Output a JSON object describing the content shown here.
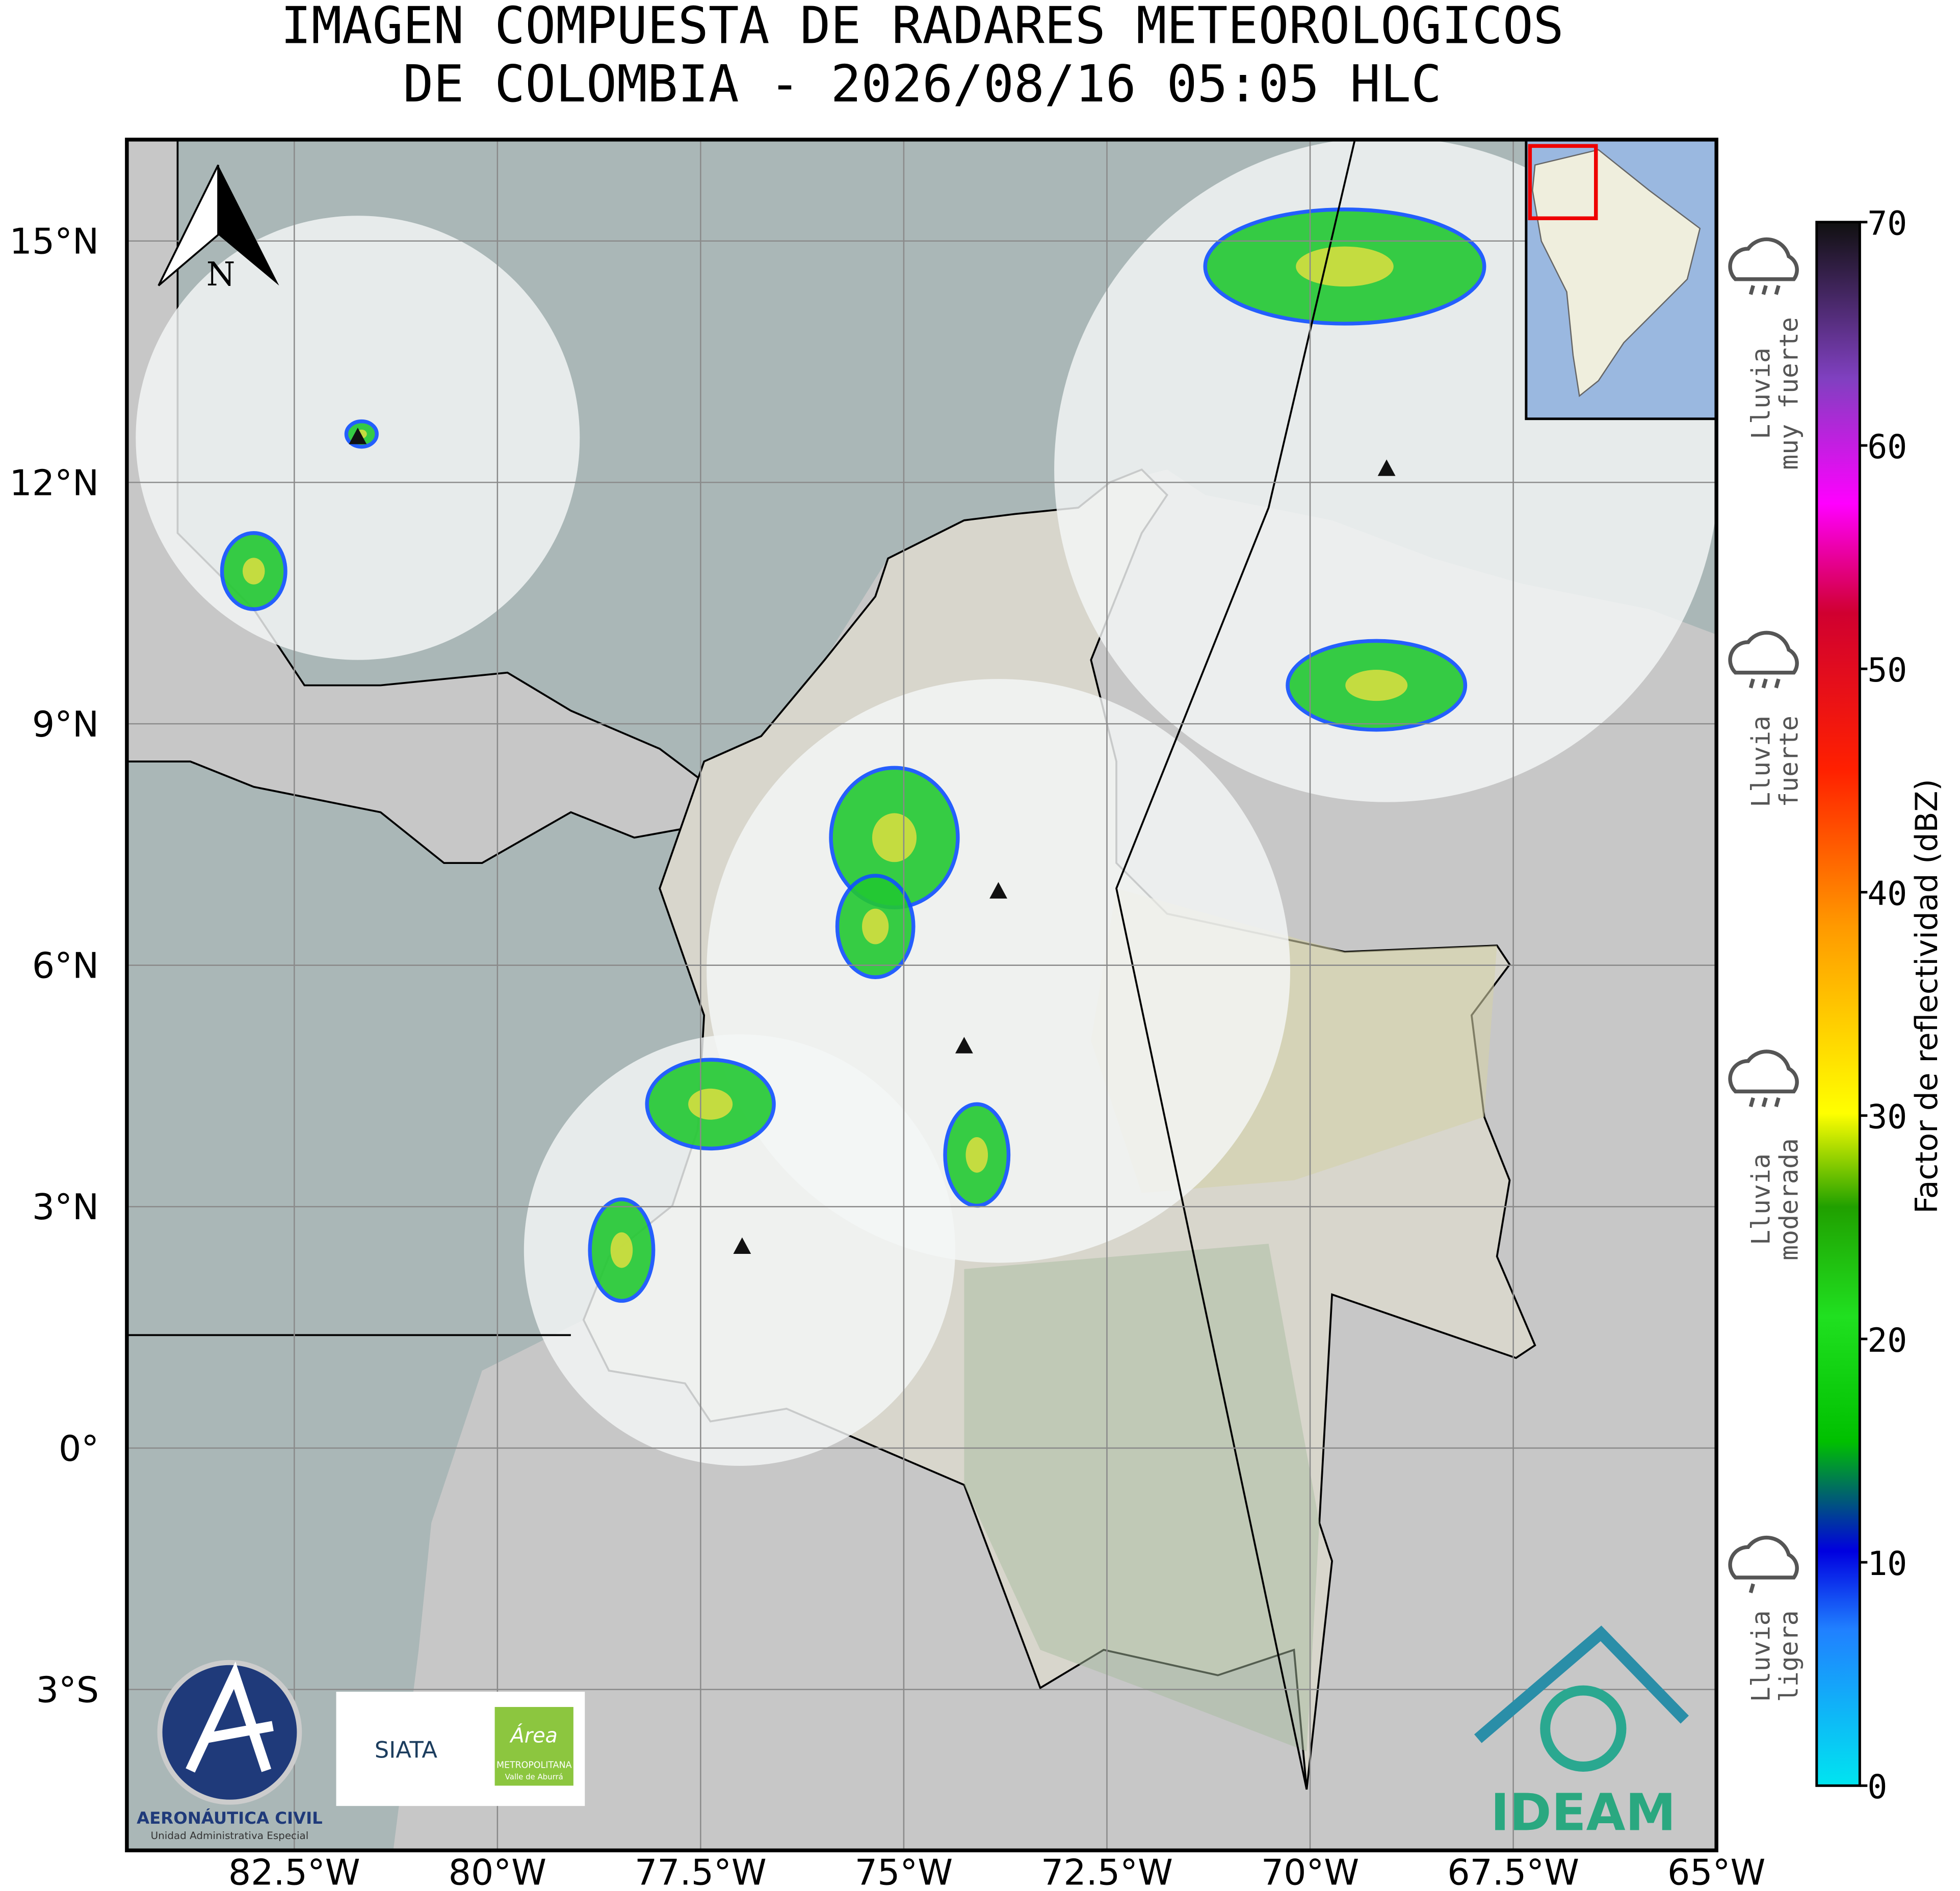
{
  "title": [
    "IMAGEN COMPUESTA DE RADARES METEOROLOGICOS",
    "DE COLOMBIA - 2026/08/16 05:05 HLC"
  ],
  "map": {
    "xlim": [
      -84.56,
      -65
    ],
    "ylim": [
      -5,
      16.26
    ],
    "grid": true,
    "north_label": "N",
    "xticks": [
      {
        "value": -82.5,
        "label": "82.5°W"
      },
      {
        "value": -80,
        "label": "80°W"
      },
      {
        "value": -77.5,
        "label": "77.5°W"
      },
      {
        "value": -75,
        "label": "75°W"
      },
      {
        "value": -72.5,
        "label": "72.5°W"
      },
      {
        "value": -70,
        "label": "70°W"
      },
      {
        "value": -67.5,
        "label": "67.5°W"
      },
      {
        "value": -65,
        "label": "65°W"
      }
    ],
    "yticks": [
      {
        "value": 15,
        "label": "15°N"
      },
      {
        "value": 12,
        "label": "12°N"
      },
      {
        "value": 9,
        "label": "9°N"
      },
      {
        "value": 6,
        "label": "6°N"
      },
      {
        "value": 3,
        "label": "3°N"
      },
      {
        "value": 0,
        "label": "0°"
      },
      {
        "value": -3,
        "label": "3°S"
      }
    ]
  },
  "colorbar": {
    "label": "Factor de reflectividad (dBZ)",
    "lim": [
      0,
      70
    ],
    "ticks": [
      0,
      10,
      20,
      30,
      40,
      50,
      60,
      70
    ]
  },
  "rain_legend": [
    [
      "Lluvia",
      "muy fuerte"
    ],
    [
      "Lluvia",
      "fuerte"
    ],
    [
      "Lluvia",
      "moderada"
    ],
    [
      "Lluvia",
      "ligera"
    ]
  ],
  "logos": {
    "aerocivil": [
      "AERONÁUTICA CIVIL",
      "Unidad Administrativa Especial"
    ],
    "siata": "SIATA",
    "area": [
      "Área",
      "METROPOLITANA",
      "Valle de Aburrá"
    ],
    "ideam": "IDEAM"
  }
}
